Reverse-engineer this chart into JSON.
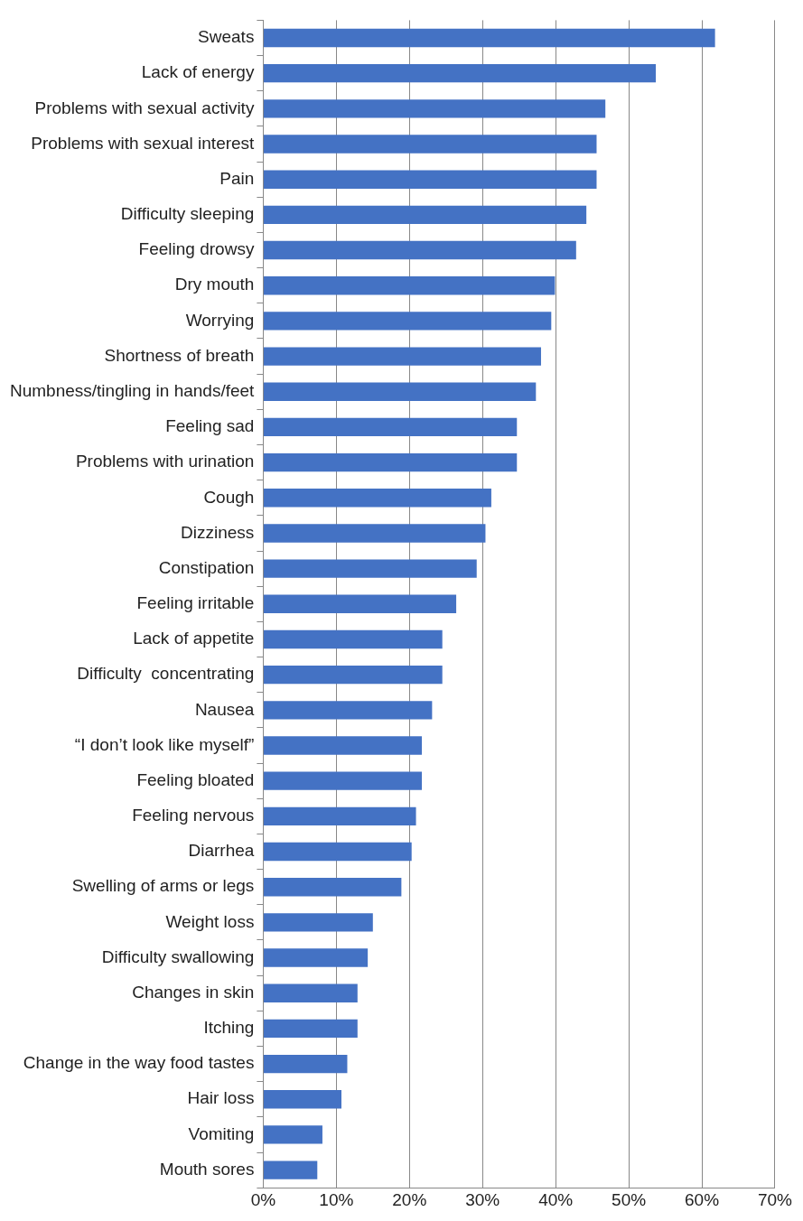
{
  "chart_data": {
    "type": "bar",
    "orientation": "horizontal",
    "categories": [
      "Sweats",
      "Lack of energy",
      "Problems with sexual activity",
      "Problems with sexual interest",
      "Pain",
      "Difficulty sleeping",
      "Feeling drowsy",
      "Dry mouth",
      "Worrying",
      "Shortness of breath",
      "Numbness/tingling in hands/feet",
      "Feeling sad",
      "Problems with urination",
      "Cough",
      "Dizziness",
      "Constipation",
      "Feeling irritable",
      "Lack of appetite",
      "Difficulty  concentrating",
      "Nausea",
      "“I don’t look like myself”",
      "Feeling bloated",
      "Feeling nervous",
      "Diarrhea",
      "Swelling of arms or legs",
      "Weight loss",
      "Difficulty swallowing",
      "Changes in skin",
      "Itching",
      "Change in the way food tastes",
      "Hair loss",
      "Vomiting",
      "Mouth sores"
    ],
    "values": [
      61.8,
      53.7,
      46.8,
      45.6,
      45.6,
      44.2,
      42.8,
      39.9,
      39.4,
      38.0,
      37.3,
      34.7,
      34.7,
      31.2,
      30.4,
      29.2,
      26.4,
      24.5,
      24.5,
      23.1,
      21.7,
      21.7,
      20.9,
      20.3,
      18.9,
      15.0,
      14.3,
      12.9,
      12.9,
      11.5,
      10.7,
      8.1,
      7.4
    ],
    "color": "#4472c4",
    "xlim": [
      0,
      70
    ],
    "xticks": [
      {
        "value": 0,
        "label": "0%"
      },
      {
        "value": 10,
        "label": "10%"
      },
      {
        "value": 20,
        "label": "20%"
      },
      {
        "value": 30,
        "label": "30%"
      },
      {
        "value": 40,
        "label": "40%"
      },
      {
        "value": 50,
        "label": "50%"
      },
      {
        "value": 60,
        "label": "60%"
      },
      {
        "value": 70,
        "label": "70%"
      }
    ],
    "grid": "x",
    "legend": false
  }
}
